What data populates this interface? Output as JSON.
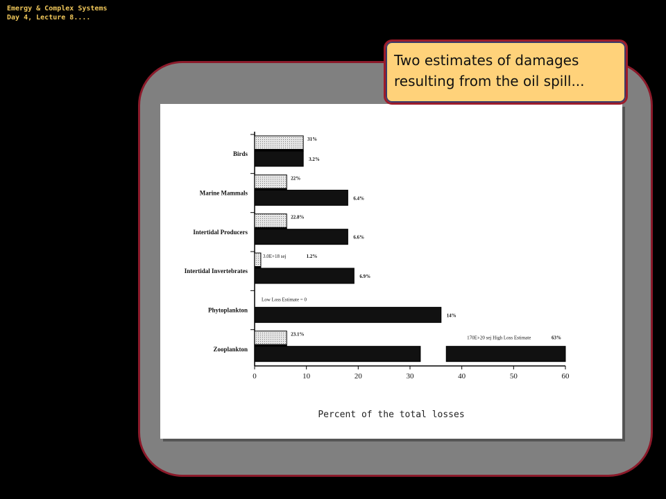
{
  "header": {
    "line1": "Emergy & Complex Systems",
    "line2": "Day 4, Lecture 8...."
  },
  "callout": {
    "line1": "Two estimates of damages",
    "line2": "resulting from the oil spill..."
  },
  "chart_data": {
    "type": "bar",
    "categories": [
      "Birds",
      "Marine Mammals",
      "Intertidal Producers",
      "Intertidal Invertebrates",
      "Phytoplankton",
      "Zooplankton"
    ],
    "series": [
      {
        "values": [
          9.4,
          6.2,
          6.2,
          1.2,
          0,
          6.2
        ],
        "labels": [
          "31%",
          "22%",
          "22.8%",
          "1.2%",
          "",
          "23.1%"
        ]
      },
      {
        "values": [
          9.4,
          18.0,
          18.0,
          19.2,
          36.0,
          60.0
        ],
        "labels": [
          "3.2%",
          "6.4%",
          "6.6%",
          "6.9%",
          "14%",
          "63%"
        ]
      }
    ],
    "annotations": [
      "3.0E+18 sej",
      "Low Loss Estimate = 0",
      "170E+20 sej High Loss Estimate"
    ],
    "xticks": [
      "0",
      "10",
      "20",
      "30",
      "40",
      "50",
      "60"
    ],
    "xlim": [
      0,
      60
    ],
    "xlabel": "Percent of the total losses"
  }
}
